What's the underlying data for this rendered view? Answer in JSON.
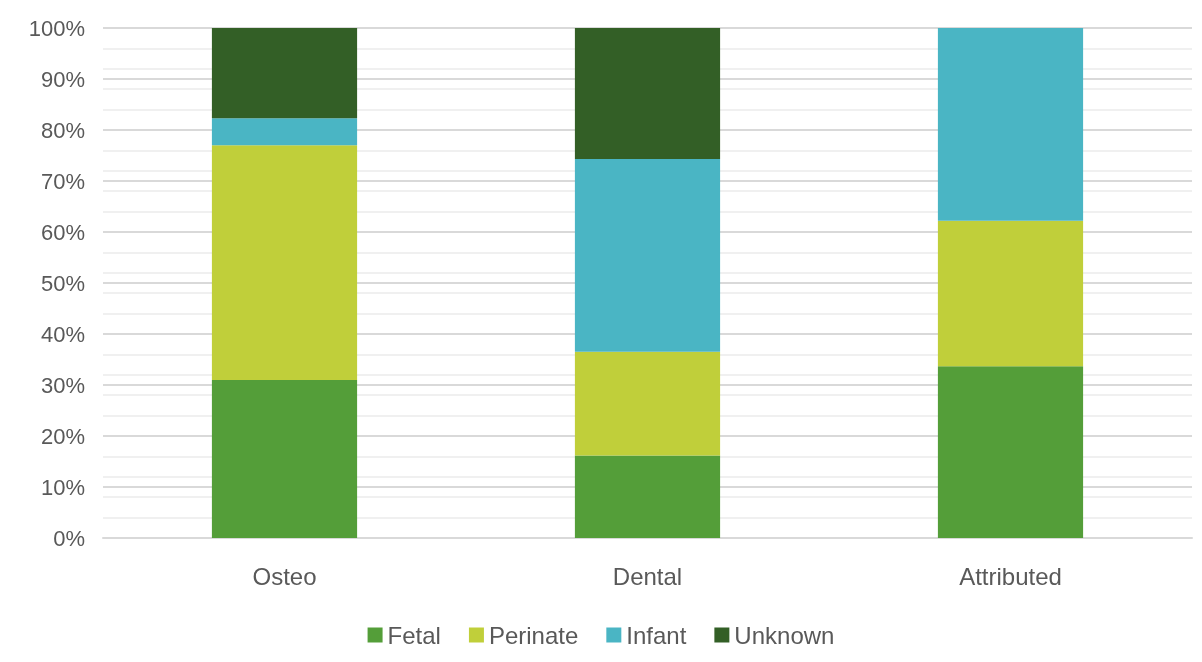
{
  "chart_data": {
    "type": "bar",
    "stacked": true,
    "categories": [
      "Osteo",
      "Dental",
      "Attributed"
    ],
    "series": [
      {
        "name": "Fetal",
        "color": "#549e39",
        "values": [
          31.0,
          16.2,
          33.7
        ]
      },
      {
        "name": "Perinate",
        "color": "#c0cf3a",
        "values": [
          46.0,
          20.3,
          28.5
        ]
      },
      {
        "name": "Infant",
        "color": "#4ab5c4",
        "values": [
          5.3,
          37.8,
          37.8
        ]
      },
      {
        "name": "Unknown",
        "color": "#335f26",
        "values": [
          17.7,
          25.7,
          0
        ]
      }
    ],
    "ylim": [
      0,
      100
    ],
    "yticks": [
      {
        "value": 0,
        "label": "0%"
      },
      {
        "value": 10,
        "label": "10%"
      },
      {
        "value": 20,
        "label": "20%"
      },
      {
        "value": 30,
        "label": "30%"
      },
      {
        "value": 40,
        "label": "40%"
      },
      {
        "value": 50,
        "label": "50%"
      },
      {
        "value": 60,
        "label": "60%"
      },
      {
        "value": 70,
        "label": "70%"
      },
      {
        "value": 80,
        "label": "80%"
      },
      {
        "value": 90,
        "label": "90%"
      },
      {
        "value": 100,
        "label": "100%"
      }
    ],
    "grid": "y",
    "legend": "bottom"
  }
}
